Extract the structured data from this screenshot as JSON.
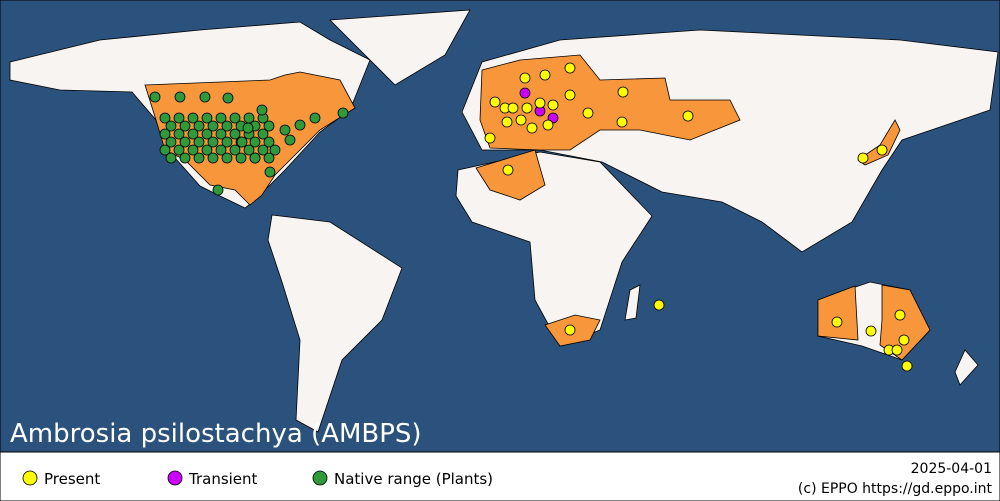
{
  "title": "Ambrosia psilostachya (AMBPS)",
  "legend": [
    "Present",
    "Transient",
    "Native range (Plants)"
  ],
  "date": "2025-04-01",
  "credit": "(c) EPPO https://gd.eppo.int"
}
